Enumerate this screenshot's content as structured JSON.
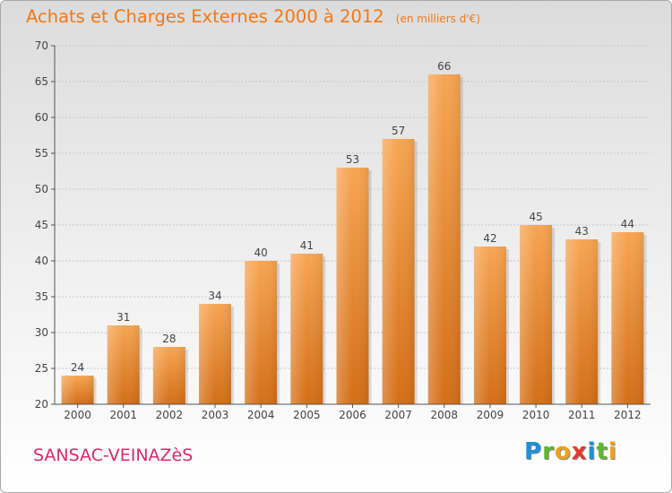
{
  "chart_data": {
    "type": "bar",
    "title": "Achats et Charges Externes 2000 à 2012",
    "subtitle": "(en milliers d'€)",
    "categories": [
      "2000",
      "2001",
      "2002",
      "2003",
      "2004",
      "2005",
      "2006",
      "2007",
      "2008",
      "2009",
      "2010",
      "2011",
      "2012"
    ],
    "values": [
      24,
      31,
      28,
      34,
      40,
      41,
      53,
      57,
      66,
      42,
      45,
      43,
      44
    ],
    "ylim": [
      20,
      70
    ],
    "yticks": [
      20,
      25,
      30,
      35,
      40,
      45,
      50,
      55,
      60,
      65,
      70
    ],
    "grid": true,
    "bar_color": "#f29a3e"
  },
  "footer": {
    "commune": "SANSAC-VEINAZèS",
    "brand_letters": [
      {
        "ch": "P",
        "color": "#1e90d6"
      },
      {
        "ch": "r",
        "color": "#5cb82e"
      },
      {
        "ch": "o",
        "color": "#f0a21d"
      },
      {
        "ch": "x",
        "color": "#e33a2c"
      },
      {
        "ch": "i",
        "color": "#1e90d6"
      },
      {
        "ch": "t",
        "color": "#5cb82e"
      },
      {
        "ch": "i",
        "color": "#f0a21d"
      }
    ]
  }
}
